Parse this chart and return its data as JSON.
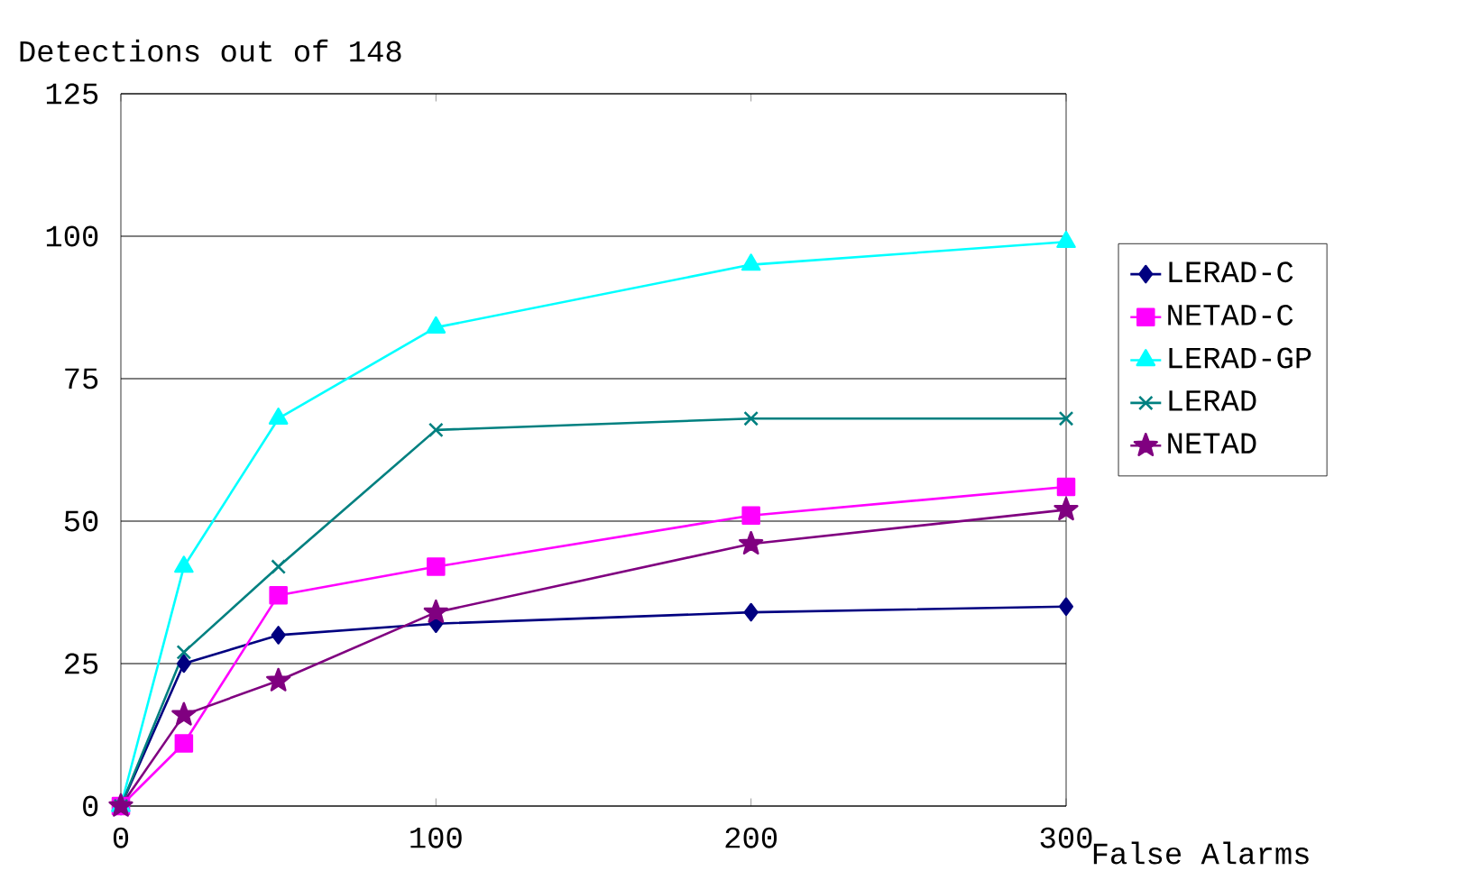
{
  "chart_data": {
    "type": "line",
    "xlabel": "False Alarms",
    "ylabel": "Detections out of 148",
    "x": [
      0,
      20,
      50,
      100,
      200,
      300
    ],
    "xlim": [
      0,
      300
    ],
    "xticks": [
      0,
      100,
      200,
      300
    ],
    "ylim": [
      0,
      125
    ],
    "yticks": [
      0,
      25,
      50,
      75,
      100,
      125
    ],
    "grid": "y",
    "legend": "right",
    "series": [
      {
        "name": "LERAD-C",
        "color": "#000080",
        "marker": "diamond",
        "values": [
          0,
          25,
          30,
          32,
          34,
          35
        ]
      },
      {
        "name": "NETAD-C",
        "color": "#ff00ff",
        "marker": "square",
        "values": [
          0,
          11,
          37,
          42,
          51,
          56
        ]
      },
      {
        "name": "LERAD-GP",
        "color": "#00ffff",
        "marker": "triangle",
        "values": [
          0,
          42,
          68,
          84,
          95,
          99
        ]
      },
      {
        "name": "LERAD",
        "color": "#008080",
        "marker": "cross",
        "values": [
          0,
          27,
          42,
          66,
          68,
          68
        ]
      },
      {
        "name": "NETAD",
        "color": "#800080",
        "marker": "star",
        "values": [
          0,
          16,
          22,
          34,
          46,
          52
        ]
      }
    ]
  }
}
